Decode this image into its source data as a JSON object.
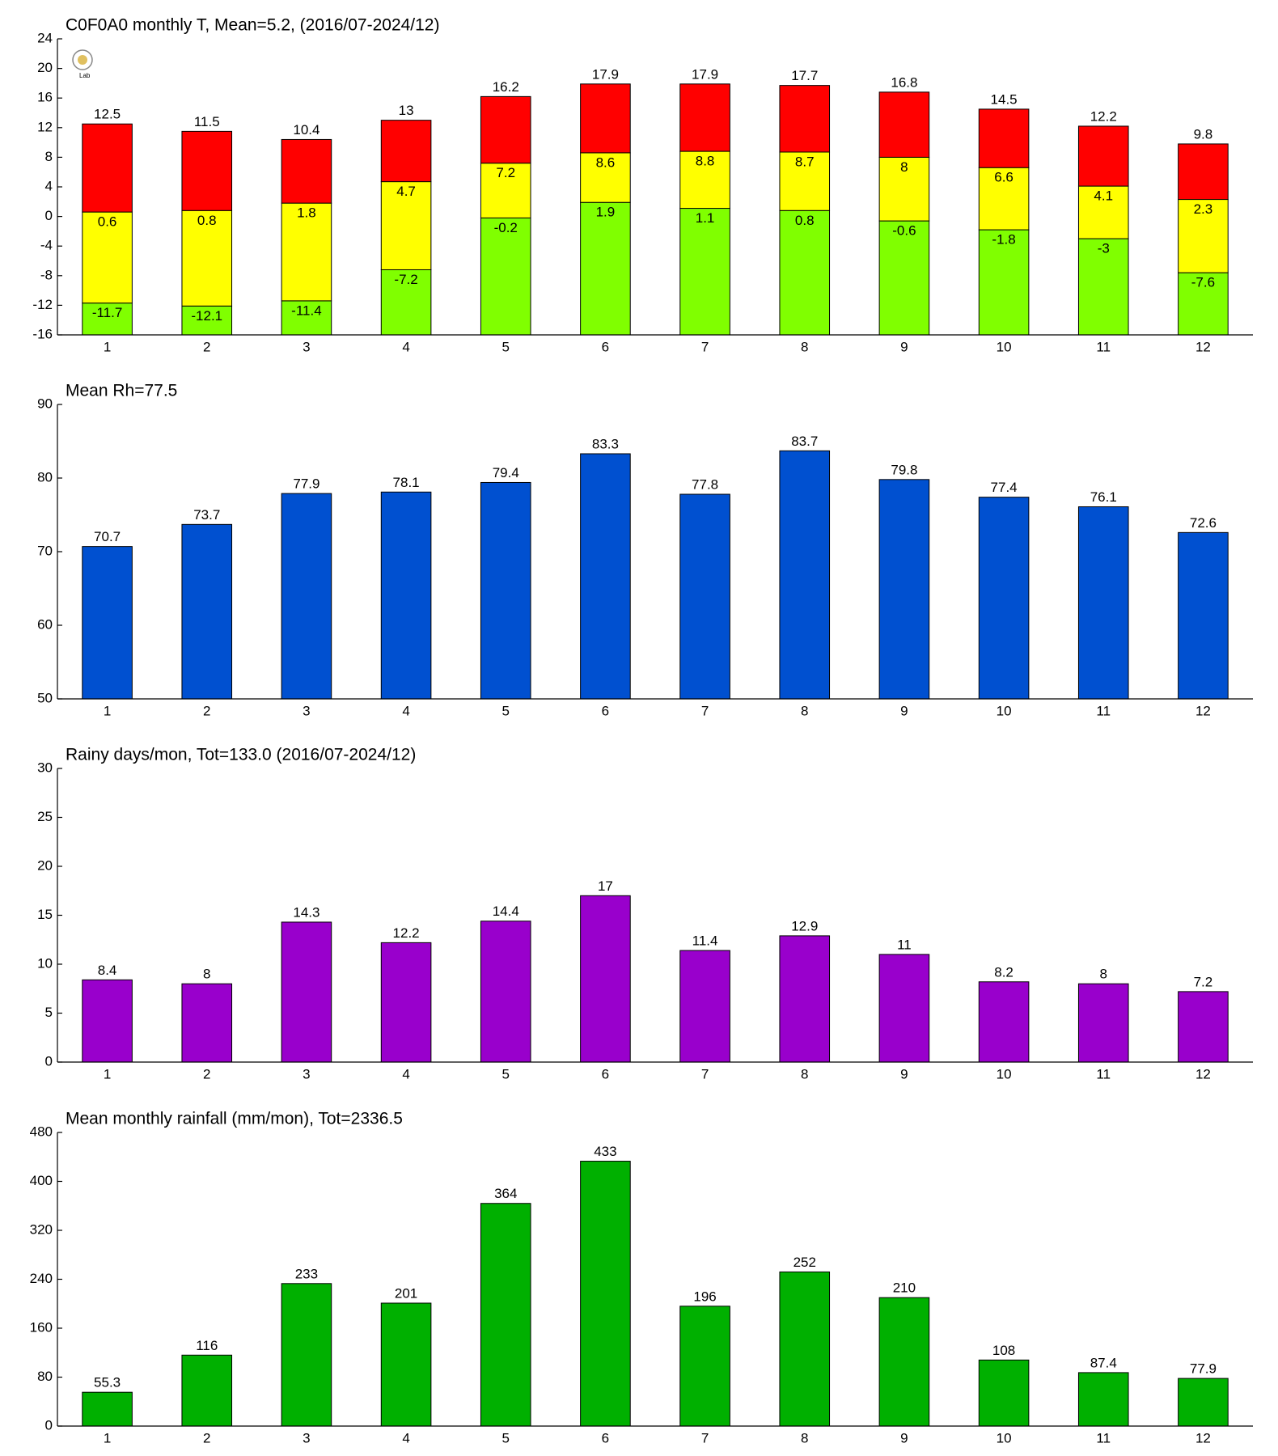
{
  "chart_data": [
    {
      "type": "range_bar",
      "title": "C0F0A0 monthly T, Mean=5.2, (2016/07-2024/12)",
      "categories": [
        "1",
        "2",
        "3",
        "4",
        "5",
        "6",
        "7",
        "8",
        "9",
        "10",
        "11",
        "12"
      ],
      "ylim": [
        -16,
        24
      ],
      "yticks": [
        -16,
        -12,
        -8,
        -4,
        0,
        4,
        8,
        12,
        16,
        20,
        24
      ],
      "series": [
        {
          "color": "#80ff00",
          "values": [
            -11.7,
            -12.1,
            -11.4,
            -7.2,
            -0.2,
            1.9,
            1.1,
            0.8,
            -0.6,
            -1.8,
            -3,
            -7.6
          ]
        },
        {
          "color": "#ffff00",
          "values": [
            0.6,
            0.8,
            1.8,
            4.7,
            7.2,
            8.6,
            8.8,
            8.7,
            8,
            6.6,
            4.1,
            2.3
          ]
        },
        {
          "color": "#ff0000",
          "values": [
            12.5,
            11.5,
            10.4,
            13,
            16.2,
            17.9,
            17.9,
            17.7,
            16.8,
            14.5,
            12.2,
            9.8
          ]
        }
      ]
    },
    {
      "type": "bar",
      "title": "Mean Rh=77.5",
      "categories": [
        "1",
        "2",
        "3",
        "4",
        "5",
        "6",
        "7",
        "8",
        "9",
        "10",
        "11",
        "12"
      ],
      "ylim": [
        50,
        90
      ],
      "yticks": [
        50,
        60,
        70,
        80,
        90
      ],
      "color": "#0050d0",
      "values": [
        70.7,
        73.7,
        77.9,
        78.1,
        79.4,
        83.3,
        77.8,
        83.7,
        79.8,
        77.4,
        76.1,
        72.6
      ]
    },
    {
      "type": "bar",
      "title": "Rainy days/mon, Tot=133.0 (2016/07-2024/12)",
      "categories": [
        "1",
        "2",
        "3",
        "4",
        "5",
        "6",
        "7",
        "8",
        "9",
        "10",
        "11",
        "12"
      ],
      "ylim": [
        0,
        30
      ],
      "yticks": [
        0,
        5,
        10,
        15,
        20,
        25,
        30
      ],
      "color": "#9900cc",
      "values": [
        8.4,
        8,
        14.3,
        12.2,
        14.4,
        17,
        11.4,
        12.9,
        11,
        8.2,
        8,
        7.2
      ]
    },
    {
      "type": "bar",
      "title": "Mean monthly rainfall (mm/mon), Tot=2336.5",
      "categories": [
        "1",
        "2",
        "3",
        "4",
        "5",
        "6",
        "7",
        "8",
        "9",
        "10",
        "11",
        "12"
      ],
      "ylim": [
        0,
        480
      ],
      "yticks": [
        0,
        80,
        160,
        240,
        320,
        400,
        480
      ],
      "color": "#00b000",
      "values": [
        55.3,
        116,
        233,
        201,
        364,
        433,
        196,
        252,
        210,
        108,
        87.4,
        77.9
      ]
    }
  ]
}
